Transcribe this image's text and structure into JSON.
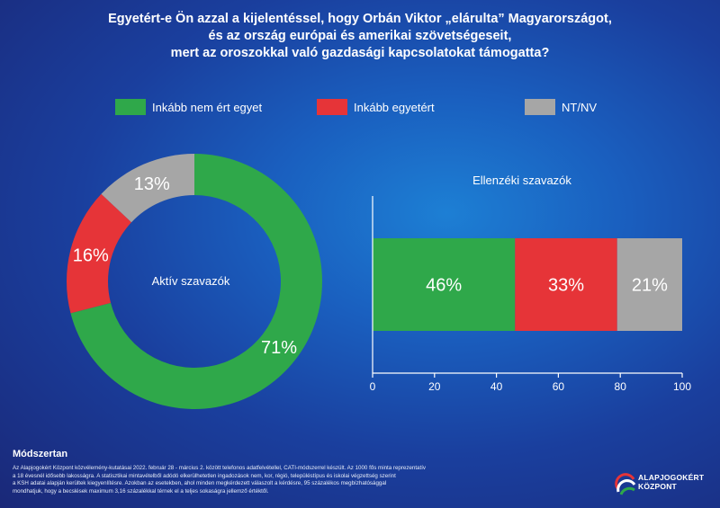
{
  "title": {
    "line1": "Egyetért-e Ön azzal a kijelentéssel, hogy Orbán Viktor „elárulta” Magyarországot,",
    "line2": "és az ország európai és amerikai szövetségeseit,",
    "line3": "mert az oroszokkal való gazdasági kapcsolatokat támogatta?"
  },
  "legend": [
    {
      "label": "Inkább nem ért egyet",
      "color": "#2fa84a"
    },
    {
      "label": "Inkább egyetért",
      "color": "#e63438"
    },
    {
      "label": "NT/NV",
      "color": "#a6a6a6"
    }
  ],
  "chart_data": [
    {
      "type": "pie",
      "title": "Aktív szavazók",
      "categories": [
        "Inkább nem ért egyet",
        "Inkább egyetért",
        "NT/NV"
      ],
      "values": [
        71,
        16,
        13
      ],
      "value_labels": [
        "71%",
        "16%",
        "13%"
      ],
      "colors": [
        "#2fa84a",
        "#e63438",
        "#a6a6a6"
      ]
    },
    {
      "type": "bar",
      "title": "Ellenzéki szavazók",
      "orientation": "horizontal-stacked",
      "categories": [
        "Inkább nem ért egyet",
        "Inkább egyetért",
        "NT/NV"
      ],
      "values": [
        46,
        33,
        21
      ],
      "value_labels": [
        "46%",
        "33%",
        "21%"
      ],
      "colors": [
        "#2fa84a",
        "#e63438",
        "#a6a6a6"
      ],
      "xlim": [
        0,
        100
      ],
      "xticks": [
        "0",
        "20",
        "40",
        "60",
        "80",
        "100"
      ]
    }
  ],
  "method": {
    "title": "Módszertan",
    "lines": [
      "Az Alapjogokért Központ közvélemény-kutatásai 2022. február 28 - március 2. között telefonos adatfelvétellel, CATI-módszerrel készült. Az 1000 fős minta reprezentatív",
      "a 18 évesnél idősebb lakosságra. A statisztikai mintavételből adódó elkerülhetetlen ingadozások nem, kor, régió, településtípus és iskolai végzettség szerint",
      "a KSH adatai alapján kerültek kiegyenlítésre. Azokban az esetekben, ahol minden megkérdezett válaszolt a kérdésre, 95 százalékos megbízhatósággal",
      "mondhatjuk, hogy a becslések maximum 3,16 százalékkal térnek el a teljes sokaságra jellemző értéktől."
    ]
  },
  "logo": {
    "line1": "ALAPJOGOKÉRT",
    "line2": "KÖZPONT",
    "colors": [
      "#e63438",
      "#ffffff",
      "#2fa84a"
    ]
  }
}
